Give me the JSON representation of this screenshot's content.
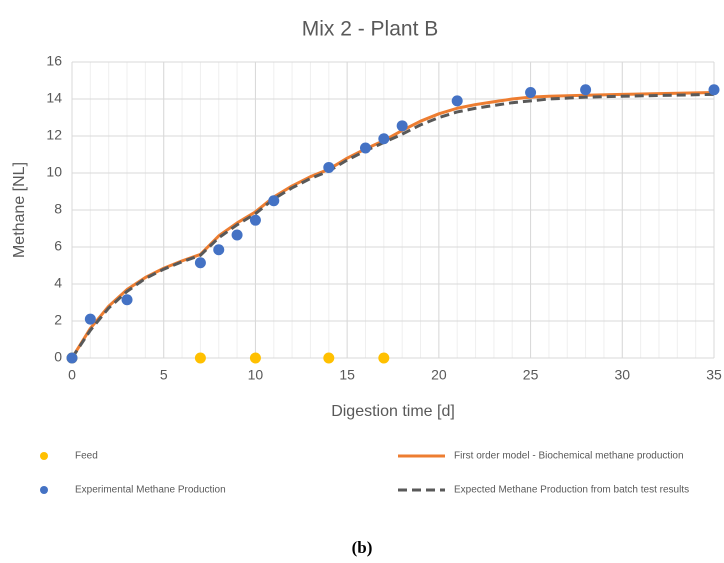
{
  "chart_data": {
    "type": "line",
    "title": "Mix 2 - Plant B",
    "xlabel": "Digestion time [d]",
    "ylabel": "Methane [NL]",
    "caption": "(b)",
    "xlim": [
      0,
      35
    ],
    "xticks": [
      0,
      5,
      10,
      15,
      20,
      25,
      30,
      35
    ],
    "xminor_step": 1,
    "ylim": [
      0,
      16
    ],
    "yticks": [
      0,
      2,
      4,
      6,
      8,
      10,
      12,
      14,
      16
    ],
    "grid": true,
    "legend": "bottom",
    "series": [
      {
        "name": "Feed",
        "style": "marker",
        "color": "#ffc000",
        "x": [
          0,
          7,
          10,
          14,
          17
        ],
        "values": [
          0,
          0,
          0,
          0,
          0
        ]
      },
      {
        "name": "First order model - Biochemical methane production",
        "style": "line",
        "color": "#ed7d31",
        "x": [
          0,
          1,
          2,
          3,
          4,
          5,
          6,
          7,
          8,
          9,
          10,
          11,
          12,
          13,
          14,
          15,
          16,
          17,
          18,
          19,
          20,
          21,
          22,
          23,
          24,
          25,
          26,
          28,
          30,
          35
        ],
        "values": [
          0,
          1.6,
          2.8,
          3.7,
          4.35,
          4.85,
          5.25,
          5.6,
          6.6,
          7.3,
          7.9,
          8.7,
          9.3,
          9.8,
          10.2,
          10.8,
          11.3,
          11.75,
          12.3,
          12.8,
          13.2,
          13.5,
          13.7,
          13.85,
          14.0,
          14.1,
          14.15,
          14.2,
          14.25,
          14.35
        ]
      },
      {
        "name": "Experimental Methane Production",
        "style": "marker",
        "color": "#4472c4",
        "x": [
          0,
          1,
          3,
          7,
          8,
          9,
          10,
          11,
          14,
          16,
          17,
          18,
          21,
          25,
          28,
          35
        ],
        "values": [
          0,
          2.1,
          3.15,
          5.15,
          5.85,
          6.65,
          7.45,
          8.5,
          10.3,
          11.35,
          11.85,
          12.55,
          13.9,
          14.35,
          14.5,
          14.5
        ]
      },
      {
        "name": "Expected Methane Production from batch test results",
        "style": "dashed",
        "color": "#595959",
        "x": [
          0,
          1,
          2,
          3,
          4,
          5,
          6,
          7,
          8,
          9,
          10,
          11,
          12,
          13,
          14,
          15,
          16,
          17,
          18,
          19,
          20,
          21,
          22,
          23,
          24,
          25,
          26,
          28,
          30,
          35
        ],
        "values": [
          0,
          1.5,
          2.7,
          3.6,
          4.3,
          4.8,
          5.2,
          5.55,
          6.5,
          7.2,
          7.8,
          8.6,
          9.2,
          9.7,
          10.1,
          10.7,
          11.2,
          11.65,
          12.1,
          12.6,
          13.0,
          13.3,
          13.5,
          13.65,
          13.8,
          13.9,
          14.0,
          14.1,
          14.15,
          14.25
        ]
      }
    ]
  }
}
